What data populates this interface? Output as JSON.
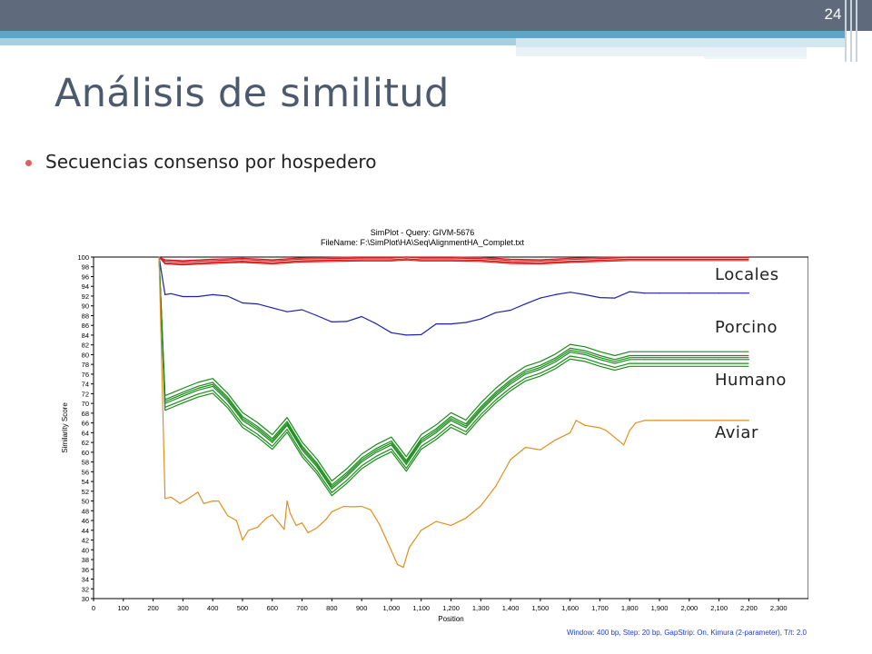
{
  "slide": {
    "page_number": "24",
    "title": "Análisis de similitud",
    "bullet": "Secuencias consenso por hospedero"
  },
  "legend_labels": [
    "Locales",
    "Porcino",
    "Humano",
    "Aviar"
  ],
  "colors": {
    "header": "#5f6b7c",
    "accent": "#5aa7c8",
    "locales": "#d81e1e",
    "porcino": "#1c22b0",
    "humano": "#1a8c1a",
    "aviar": "#e0901e"
  },
  "chart_data": {
    "type": "line",
    "title": "SimPlot - Query: GIVM-5676",
    "subtitle": "FileName: F:\\SimPlot\\HA\\Seq\\AlignmentHA_Complet.txt",
    "xlabel": "Position",
    "ylabel": "Similarity Score",
    "footer": "Window: 400 bp, Step: 20 bp, GapStrip: On, Kimura (2-parameter), T/t: 2.0",
    "xlim": [
      0,
      2400
    ],
    "ylim": [
      30,
      100
    ],
    "xticks": [
      "0",
      "100",
      "200",
      "300",
      "400",
      "500",
      "600",
      "700",
      "800",
      "900",
      "1,000",
      "1,100",
      "1,200",
      "1,300",
      "1,400",
      "1,500",
      "1,600",
      "1,700",
      "1,800",
      "1,900",
      "2,000",
      "2,100",
      "2,200",
      "2,300"
    ],
    "yticks": [
      "30",
      "32",
      "34",
      "36",
      "38",
      "40",
      "42",
      "44",
      "46",
      "48",
      "50",
      "52",
      "54",
      "56",
      "58",
      "60",
      "62",
      "64",
      "66",
      "68",
      "70",
      "72",
      "74",
      "76",
      "78",
      "80",
      "82",
      "84",
      "86",
      "88",
      "90",
      "92",
      "94",
      "96",
      "98",
      "100"
    ],
    "series": [
      {
        "group": "Locales",
        "color": "#d81e1e",
        "x": [
          220,
          240,
          300,
          400,
          500,
          600,
          700,
          800,
          900,
          1000,
          1050,
          1100,
          1200,
          1300,
          1400,
          1500,
          1600,
          1700,
          1800,
          1900,
          2000,
          2100,
          2200
        ],
        "y": [
          100,
          99.2,
          99.0,
          99.3,
          99.5,
          99.2,
          99.6,
          99.7,
          99.8,
          99.8,
          100,
          99.8,
          99.8,
          99.7,
          99.3,
          99.2,
          99.5,
          99.7,
          99.9,
          99.9,
          99.9,
          99.9,
          99.9
        ]
      },
      {
        "group": "Porcino",
        "color": "#1c22b0",
        "x": [
          220,
          240,
          260,
          300,
          350,
          400,
          450,
          500,
          550,
          600,
          650,
          700,
          750,
          800,
          850,
          900,
          950,
          1000,
          1050,
          1100,
          1150,
          1200,
          1250,
          1300,
          1350,
          1400,
          1450,
          1500,
          1550,
          1600,
          1650,
          1700,
          1750,
          1800,
          1850,
          1900,
          2000,
          2100,
          2200
        ],
        "y": [
          100,
          92.3,
          92.5,
          91.9,
          91.9,
          92.3,
          92.0,
          90.6,
          90.4,
          89.6,
          88.8,
          89.2,
          88.0,
          86.7,
          86.8,
          87.8,
          86.3,
          84.5,
          84.0,
          84.1,
          86.3,
          86.3,
          86.6,
          87.3,
          88.6,
          89.1,
          90.4,
          91.6,
          92.3,
          92.8,
          92.3,
          91.7,
          91.6,
          92.9,
          92.6,
          92.6,
          92.6,
          92.6,
          92.6
        ]
      },
      {
        "group": "Humano",
        "color": "#1a8c1a",
        "x": [
          220,
          240,
          260,
          300,
          350,
          400,
          450,
          500,
          550,
          600,
          650,
          700,
          750,
          800,
          850,
          900,
          950,
          1000,
          1050,
          1100,
          1150,
          1200,
          1250,
          1300,
          1350,
          1400,
          1450,
          1500,
          1550,
          1600,
          1650,
          1700,
          1750,
          1800,
          1850,
          1900,
          2000,
          2100,
          2200
        ],
        "y": [
          100,
          70.0,
          70.5,
          71.5,
          72.7,
          73.5,
          70.5,
          66.5,
          64.5,
          62.0,
          65.5,
          60.5,
          57.0,
          52.5,
          55.0,
          58.0,
          60.0,
          61.5,
          57.5,
          62.0,
          64.0,
          66.5,
          65.0,
          68.5,
          71.5,
          74.0,
          76.0,
          77.0,
          78.5,
          80.5,
          80.0,
          79.0,
          78.2,
          79.0,
          79.0,
          79.0,
          79.0,
          79.0,
          79.0
        ]
      },
      {
        "group": "Aviar",
        "color": "#e0901e",
        "x": [
          220,
          240,
          260,
          290,
          310,
          350,
          370,
          400,
          420,
          450,
          480,
          500,
          520,
          550,
          580,
          600,
          640,
          650,
          660,
          680,
          700,
          720,
          750,
          780,
          800,
          840,
          870,
          900,
          930,
          960,
          1000,
          1020,
          1040,
          1060,
          1100,
          1150,
          1200,
          1250,
          1300,
          1350,
          1400,
          1450,
          1500,
          1550,
          1600,
          1620,
          1650,
          1700,
          1720,
          1750,
          1780,
          1800,
          1820,
          1850,
          1900,
          2000,
          2100,
          2200
        ],
        "y": [
          100,
          50.5,
          50.8,
          49.5,
          50.2,
          51.8,
          49.5,
          50.0,
          50.0,
          47.0,
          46.0,
          42.0,
          44.0,
          44.6,
          46.5,
          47.2,
          44.2,
          50.0,
          47.5,
          45.0,
          45.5,
          43.5,
          44.5,
          46.2,
          47.8,
          48.9,
          48.8,
          48.9,
          48.2,
          45.2,
          39.8,
          37.0,
          36.4,
          40.5,
          44.0,
          45.8,
          45.0,
          46.5,
          49.0,
          53.0,
          58.5,
          61.0,
          60.5,
          62.5,
          64.0,
          66.5,
          65.5,
          65.0,
          64.5,
          63.0,
          61.5,
          64.5,
          66.0,
          66.5,
          66.5,
          66.5,
          66.5,
          66.5
        ]
      }
    ]
  }
}
